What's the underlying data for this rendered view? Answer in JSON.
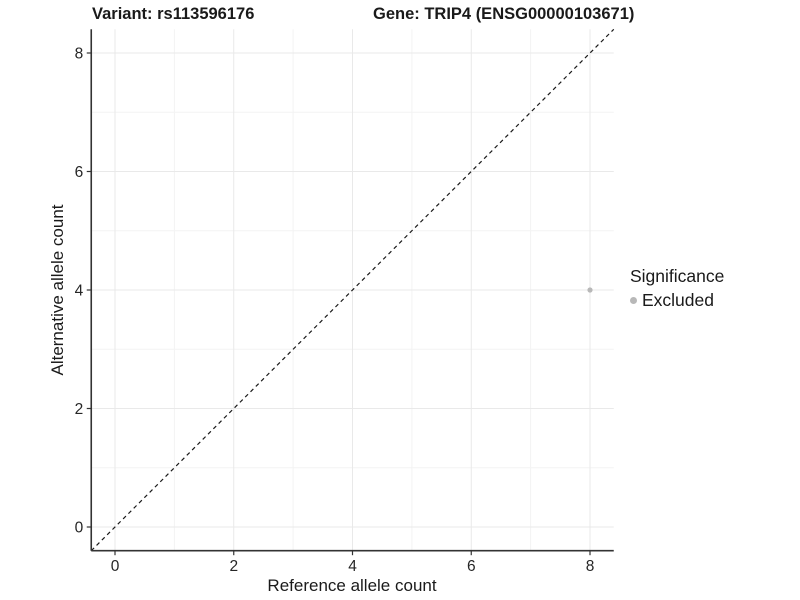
{
  "chart_data": {
    "type": "scatter",
    "title_parts": {
      "left": "Variant: rs113596176",
      "right": "Gene: TRIP4 (ENSG00000103671)"
    },
    "xlabel": "Reference allele count",
    "ylabel": "Alternative allele count",
    "xlim": [
      -0.4,
      8.4
    ],
    "ylim": [
      -0.4,
      8.4
    ],
    "xticks": [
      0,
      2,
      4,
      6,
      8
    ],
    "yticks": [
      0,
      2,
      4,
      6,
      8
    ],
    "x_minor_ticks": [
      1,
      3,
      5,
      7
    ],
    "y_minor_ticks": [
      1,
      3,
      5,
      7
    ],
    "grid": true,
    "identity_line": {
      "slope": 1,
      "intercept": 0,
      "style": "dashed",
      "color": "#1a1a1a"
    },
    "series": [
      {
        "name": "Excluded",
        "color": "#b8b8b8",
        "points": [
          {
            "x": 8,
            "y": 4
          }
        ]
      }
    ],
    "legend": {
      "title": "Significance",
      "position": "right",
      "entries": [
        {
          "label": "Excluded",
          "color": "#b8b8b8"
        }
      ]
    },
    "colors": {
      "axis_line": "#333333",
      "tick_label": "#262626",
      "grid_major": "#e9e9e9",
      "grid_minor": "#f3f3f3",
      "background": "#ffffff"
    }
  }
}
